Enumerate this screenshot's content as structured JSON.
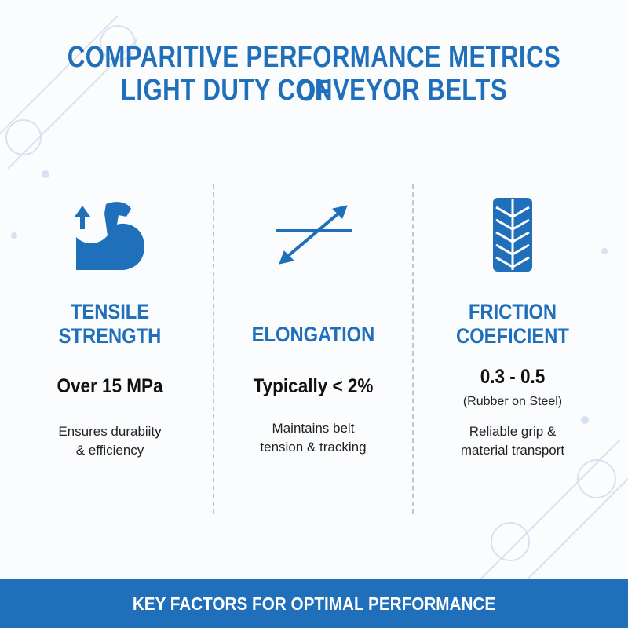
{
  "header": {
    "title_lines": [
      "COMPARITIVE PERFORMANCE METRICS OF",
      "LIGHT DUTY CONVEYOR BELTS"
    ]
  },
  "metrics": [
    {
      "heading": [
        "TENSILE",
        "STRENGTH"
      ],
      "value": "Over 15 MPa",
      "description": [
        "Ensures durabiity",
        "& efficiency"
      ]
    },
    {
      "heading": [
        "ELONGATION"
      ],
      "value": "Typically < 2%",
      "description": [
        "Maintains belt",
        "tension & tracking"
      ]
    },
    {
      "heading": [
        "FRICTION",
        "COEFICIENT"
      ],
      "value": "0.3 - 0.5",
      "qualifier": "(Rubber on Steel)",
      "description": [
        "Reliable grip &",
        "material transport"
      ]
    }
  ],
  "footer": {
    "text": "KEY FACTORS FOR OPTIMAL PERFORMANCE"
  }
}
